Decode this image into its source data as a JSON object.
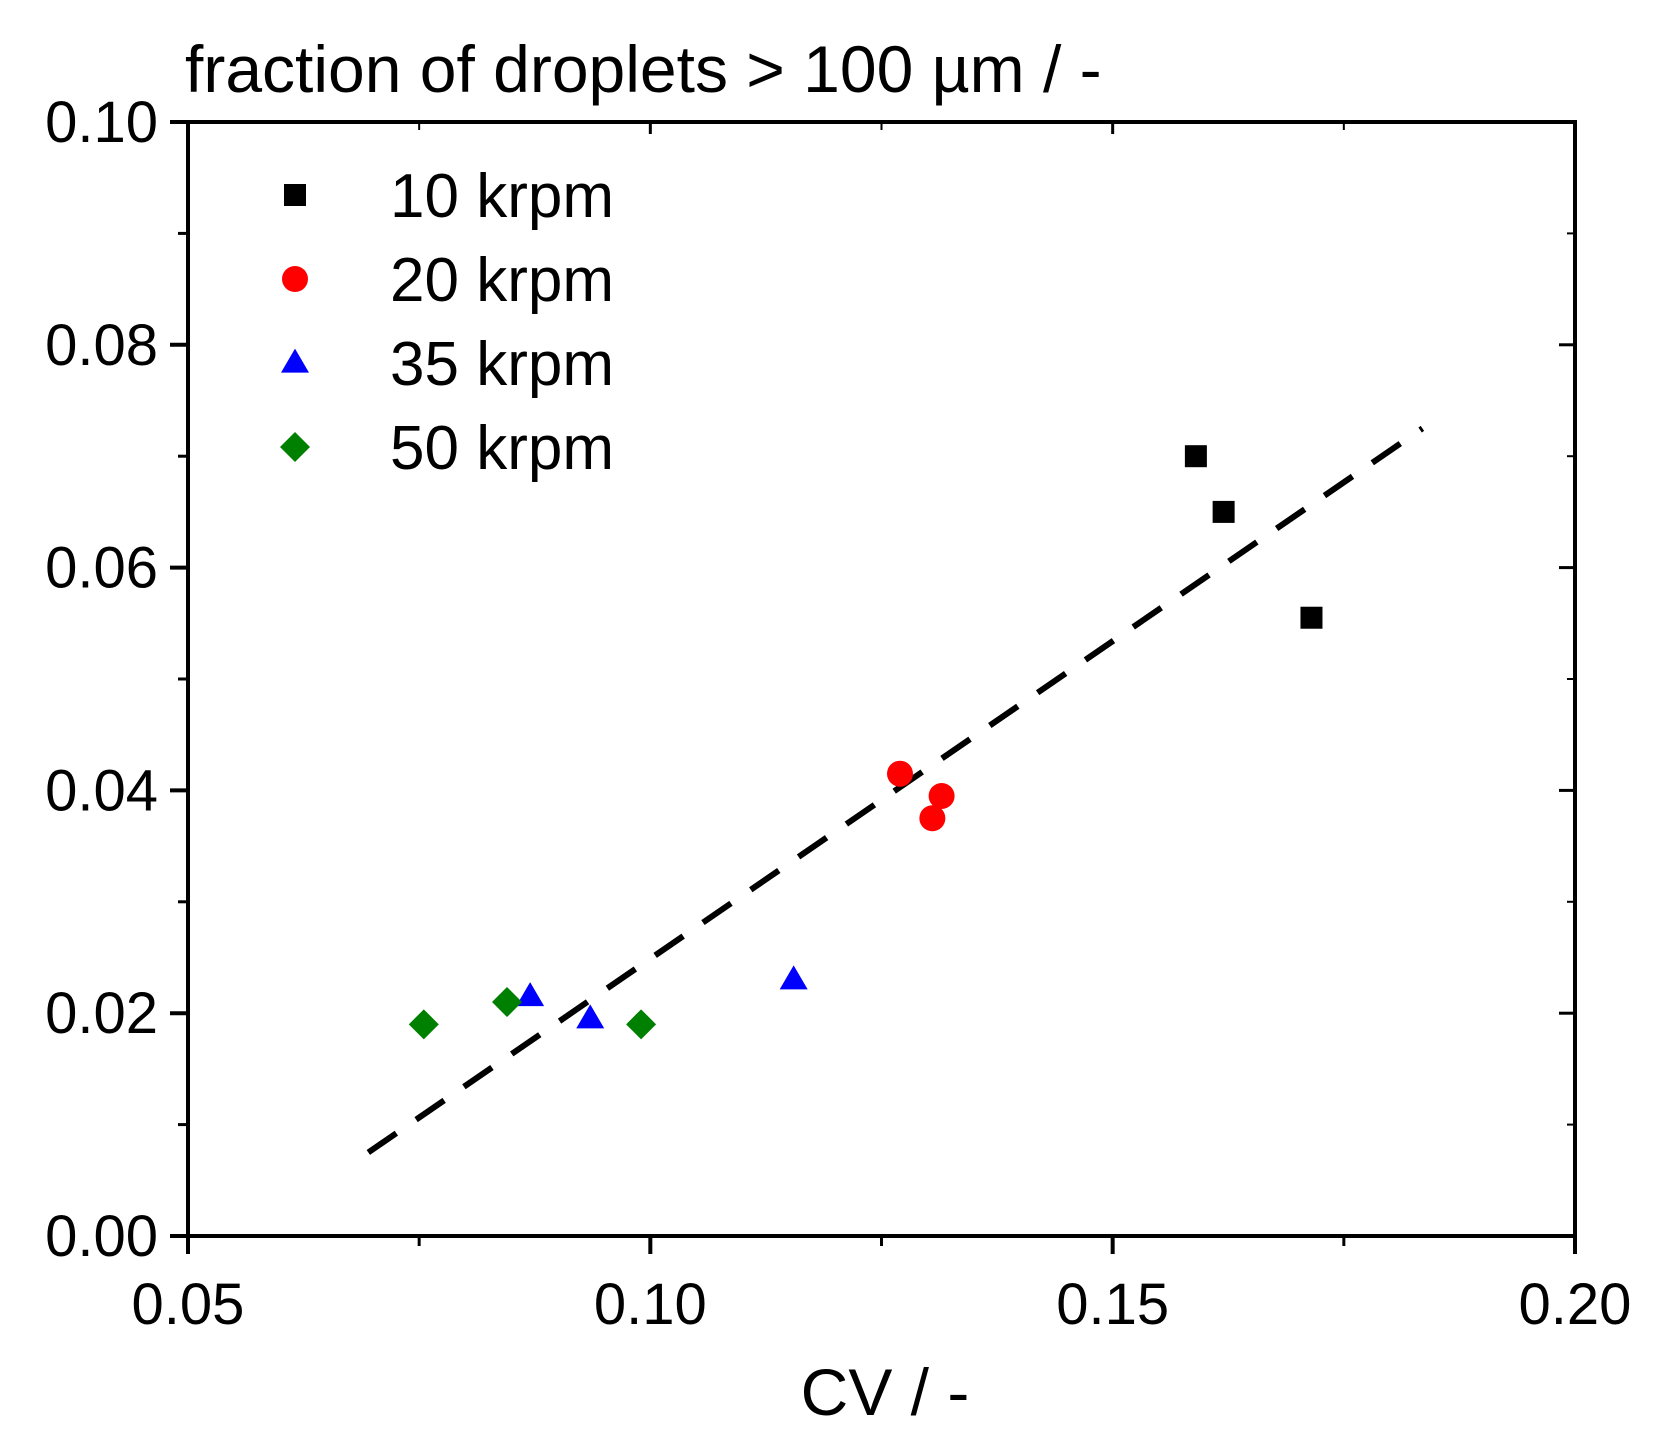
{
  "chart_data": {
    "type": "scatter",
    "title": "fraction of droplets > 100 µm / -",
    "xlabel": "CV / -",
    "ylabel": "",
    "xlim": [
      0.05,
      0.2
    ],
    "ylim": [
      0.0,
      0.1
    ],
    "x_ticks": [
      0.05,
      0.1,
      0.15,
      0.2
    ],
    "x_tick_labels": [
      "0.05",
      "0.10",
      "0.15",
      "0.20"
    ],
    "y_ticks": [
      0.0,
      0.02,
      0.04,
      0.06,
      0.08,
      0.1
    ],
    "y_tick_labels": [
      "0.00",
      "0.02",
      "0.04",
      "0.06",
      "0.08",
      "0.10"
    ],
    "grid": false,
    "legend_position": "top-left",
    "series": [
      {
        "name": "10 krpm",
        "marker": "square",
        "color": "#000000",
        "points": [
          [
            0.159,
            0.07
          ],
          [
            0.162,
            0.065
          ],
          [
            0.1715,
            0.0555
          ]
        ]
      },
      {
        "name": "20 krpm",
        "marker": "circle",
        "color": "#ff0000",
        "points": [
          [
            0.127,
            0.0415
          ],
          [
            0.1315,
            0.0395
          ],
          [
            0.1305,
            0.0375
          ]
        ]
      },
      {
        "name": "35 krpm",
        "marker": "triangle",
        "color": "#0000ff",
        "points": [
          [
            0.087,
            0.0215
          ],
          [
            0.0935,
            0.0195
          ],
          [
            0.1155,
            0.023
          ]
        ]
      },
      {
        "name": "50 krpm",
        "marker": "diamond",
        "color": "#008000",
        "points": [
          [
            0.0755,
            0.019
          ],
          [
            0.0845,
            0.021
          ],
          [
            0.099,
            0.019
          ]
        ]
      }
    ],
    "fit_line": {
      "style": "dashed",
      "color": "#000000",
      "points": [
        [
          0.0695,
          0.0075
        ],
        [
          0.1835,
          0.0725
        ]
      ]
    }
  }
}
